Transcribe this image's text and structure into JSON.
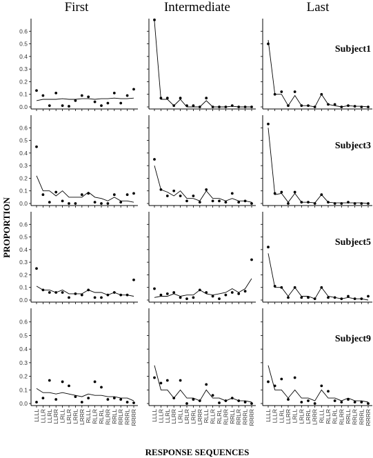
{
  "chart_data": {
    "type": "scatter",
    "xlabel": "RESPONSE SEQUENCES",
    "ylabel": "PROPORTION",
    "ylim": [
      0,
      0.7
    ],
    "yticks": [
      "0.0",
      "0.1",
      "0.2",
      "0.3",
      "0.4",
      "0.5",
      "0.6"
    ],
    "columns": [
      "First",
      "Intermediate",
      "Last"
    ],
    "categories": [
      "LLLL",
      "LLLR",
      "LLRL",
      "LLRR",
      "LRLL",
      "LRLR",
      "LRRL",
      "LRRR",
      "RLLL",
      "RLLR",
      "RLRL",
      "RLRR",
      "RRLL",
      "RRLR",
      "RRRL",
      "RRRR"
    ],
    "grid": false,
    "panels": [
      {
        "subject": "Subject1",
        "column": "First",
        "points": [
          0.13,
          0.09,
          0.01,
          0.11,
          0.01,
          0.005,
          0.05,
          0.09,
          0.08,
          0.04,
          0.01,
          0.03,
          0.11,
          0.03,
          0.09,
          0.14
        ],
        "line": [
          0.05,
          0.06,
          0.06,
          0.06,
          0.065,
          0.06,
          0.06,
          0.065,
          0.065,
          0.06,
          0.065,
          0.065,
          0.07,
          0.065,
          0.065,
          0.07
        ]
      },
      {
        "subject": "Subject1",
        "column": "Intermediate",
        "points": [
          0.69,
          0.07,
          0.07,
          0.01,
          0.07,
          0.01,
          0.01,
          0.0,
          0.07,
          0.0,
          0.0,
          0.0,
          0.01,
          0.0,
          0.0,
          0.0
        ],
        "line": [
          0.68,
          0.06,
          0.06,
          0.01,
          0.06,
          0.0,
          0.0,
          0.0,
          0.05,
          0.0,
          0.0,
          0.0,
          0.005,
          0.0,
          0.0,
          0.0
        ]
      },
      {
        "subject": "Subject1",
        "column": "Last",
        "points": [
          0.5,
          0.1,
          0.12,
          0.01,
          0.12,
          0.01,
          0.01,
          0.0,
          0.1,
          0.02,
          0.02,
          0.0,
          0.01,
          0.005,
          0.0,
          0.0
        ],
        "line": [
          0.53,
          0.1,
          0.1,
          0.01,
          0.09,
          0.01,
          0.01,
          0.0,
          0.1,
          0.02,
          0.01,
          0.0,
          0.01,
          0.005,
          0.005,
          0.0
        ]
      },
      {
        "subject": "Subject3",
        "column": "First",
        "points": [
          0.45,
          0.07,
          0.01,
          0.09,
          0.02,
          0.0,
          0.0,
          0.07,
          0.08,
          0.01,
          0.0,
          0.0,
          0.07,
          0.01,
          0.07,
          0.08
        ],
        "line": [
          0.22,
          0.1,
          0.1,
          0.06,
          0.1,
          0.05,
          0.05,
          0.05,
          0.09,
          0.05,
          0.04,
          0.02,
          0.05,
          0.02,
          0.02,
          0.01
        ]
      },
      {
        "subject": "Subject3",
        "column": "Intermediate",
        "points": [
          0.35,
          0.11,
          0.06,
          0.1,
          0.06,
          0.02,
          0.06,
          0.01,
          0.11,
          0.02,
          0.02,
          0.01,
          0.08,
          0.01,
          0.02,
          0.0
        ],
        "line": [
          0.3,
          0.11,
          0.09,
          0.06,
          0.1,
          0.04,
          0.04,
          0.02,
          0.1,
          0.04,
          0.04,
          0.02,
          0.04,
          0.02,
          0.02,
          0.01
        ]
      },
      {
        "subject": "Subject3",
        "column": "Last",
        "points": [
          0.63,
          0.08,
          0.09,
          0.0,
          0.09,
          0.01,
          0.01,
          0.0,
          0.07,
          0.01,
          0.0,
          0.0,
          0.01,
          0.0,
          0.0,
          0.0
        ],
        "line": [
          0.6,
          0.07,
          0.08,
          0.01,
          0.08,
          0.01,
          0.01,
          0.005,
          0.07,
          0.01,
          0.005,
          0.005,
          0.005,
          0.005,
          0.005,
          0.0
        ]
      },
      {
        "subject": "Subject5",
        "column": "First",
        "points": [
          0.25,
          0.08,
          0.06,
          0.06,
          0.06,
          0.02,
          0.05,
          0.04,
          0.08,
          0.02,
          0.02,
          0.04,
          0.06,
          0.04,
          0.04,
          0.16
        ],
        "line": [
          0.11,
          0.08,
          0.08,
          0.06,
          0.08,
          0.05,
          0.05,
          0.05,
          0.08,
          0.06,
          0.06,
          0.04,
          0.06,
          0.04,
          0.04,
          0.03
        ]
      },
      {
        "subject": "Subject5",
        "column": "Intermediate",
        "points": [
          0.09,
          0.04,
          0.05,
          0.06,
          0.02,
          0.01,
          0.02,
          0.08,
          0.06,
          0.03,
          0.01,
          0.04,
          0.06,
          0.05,
          0.07,
          0.32
        ],
        "line": [
          0.02,
          0.03,
          0.03,
          0.05,
          0.03,
          0.04,
          0.04,
          0.08,
          0.05,
          0.04,
          0.05,
          0.06,
          0.09,
          0.06,
          0.09,
          0.17
        ]
      },
      {
        "subject": "Subject5",
        "column": "Last",
        "points": [
          0.42,
          0.11,
          0.1,
          0.02,
          0.1,
          0.02,
          0.02,
          0.01,
          0.1,
          0.02,
          0.02,
          0.01,
          0.03,
          0.01,
          0.01,
          0.03
        ],
        "line": [
          0.37,
          0.1,
          0.1,
          0.03,
          0.1,
          0.03,
          0.03,
          0.01,
          0.1,
          0.03,
          0.02,
          0.01,
          0.02,
          0.01,
          0.01,
          0.0
        ]
      },
      {
        "subject": "Subject9",
        "column": "First",
        "points": [
          0.01,
          0.04,
          0.17,
          0.03,
          0.16,
          0.13,
          0.05,
          0.01,
          0.04,
          0.16,
          0.12,
          0.03,
          0.04,
          0.03,
          0.01,
          0.005
        ],
        "line": [
          0.11,
          0.08,
          0.08,
          0.07,
          0.08,
          0.07,
          0.06,
          0.05,
          0.07,
          0.06,
          0.06,
          0.05,
          0.05,
          0.04,
          0.04,
          0.02
        ]
      },
      {
        "subject": "Subject9",
        "column": "Intermediate",
        "points": [
          0.19,
          0.15,
          0.17,
          0.04,
          0.17,
          0.0,
          0.03,
          0.02,
          0.14,
          0.06,
          0.005,
          0.02,
          0.04,
          0.02,
          0.01,
          0.0
        ],
        "line": [
          0.28,
          0.1,
          0.1,
          0.04,
          0.1,
          0.04,
          0.04,
          0.02,
          0.1,
          0.04,
          0.04,
          0.02,
          0.04,
          0.02,
          0.02,
          0.01
        ]
      },
      {
        "subject": "Subject9",
        "column": "Last",
        "points": [
          0.16,
          0.13,
          0.18,
          0.03,
          0.19,
          0.01,
          0.02,
          0.0,
          0.13,
          0.09,
          0.02,
          0.01,
          0.03,
          0.01,
          0.01,
          0.0
        ],
        "line": [
          0.28,
          0.1,
          0.1,
          0.04,
          0.1,
          0.04,
          0.04,
          0.02,
          0.1,
          0.04,
          0.04,
          0.02,
          0.04,
          0.02,
          0.02,
          0.01
        ]
      }
    ]
  }
}
